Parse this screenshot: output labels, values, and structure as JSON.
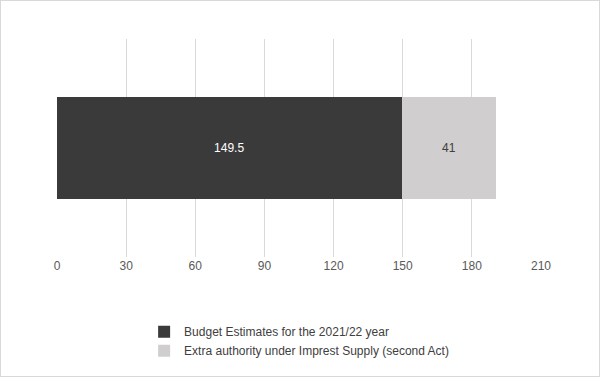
{
  "chart_data": {
    "type": "bar",
    "orientation": "horizontal",
    "stacked": true,
    "categories": [
      null
    ],
    "series": [
      {
        "name": "Budget Estimates for the 2021/22 year",
        "color": "#3a3a3a",
        "values": [
          149.5
        ]
      },
      {
        "name": "Extra authority under Imprest Supply (second Act)",
        "color": "#d0cece",
        "values": [
          41
        ]
      }
    ],
    "xlim": [
      0,
      210
    ],
    "xticks": [
      0,
      30,
      60,
      90,
      120,
      150,
      180,
      210
    ],
    "grid": true,
    "data_labels": true,
    "legend": "bottom",
    "tick_labels": "x"
  }
}
